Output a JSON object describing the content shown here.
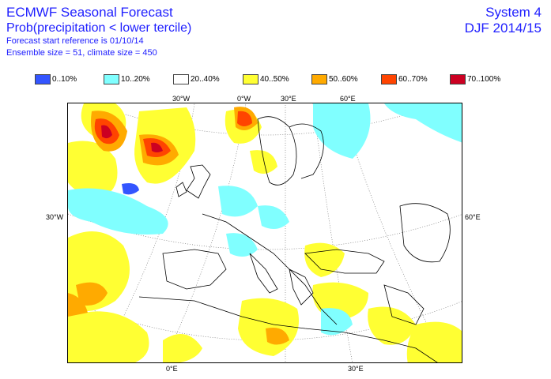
{
  "header": {
    "title": "ECMWF Seasonal Forecast",
    "subtitle": "Prob(precipitation < lower tercile)",
    "forecast_start": "Forecast start reference is 01/10/14",
    "ensemble": "Ensemble size = 51, climate size = 450",
    "system": "System 4",
    "period": "DJF 2014/15"
  },
  "legend": [
    {
      "label": "0..10%",
      "color": "#3355ff"
    },
    {
      "label": "10..20%",
      "color": "#80ffff"
    },
    {
      "label": "20..40%",
      "color": "#ffffff"
    },
    {
      "label": "40..50%",
      "color": "#ffff33"
    },
    {
      "label": "50..60%",
      "color": "#ffaa00"
    },
    {
      "label": "60..70%",
      "color": "#ff4400"
    },
    {
      "label": "70..100%",
      "color": "#cc0022"
    }
  ],
  "axis_labels": {
    "top_30w": "30°W",
    "top_0w": "0°W",
    "top_30e": "30°E",
    "top_60e": "60°E",
    "left_30w": "30°W",
    "right_60e": "60°E",
    "bottom_0e": "0°E",
    "bottom_30e": "30°E"
  }
}
